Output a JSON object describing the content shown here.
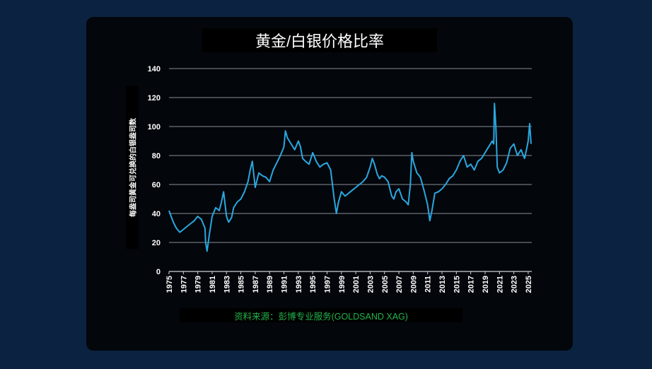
{
  "chart_data": {
    "type": "line",
    "title": "黄金/白银价格比率",
    "ylabel": "每盎司黄金可兑换的白银盎司数",
    "source": "资料来源：彭博专业服务(GOLDSAND XAG)",
    "ylim": [
      0,
      140
    ],
    "xlim": [
      1975,
      2025.5
    ],
    "grid": true,
    "line_color": "#29a8e0",
    "y_ticks": [
      0,
      20,
      40,
      60,
      80,
      100,
      120,
      140
    ],
    "x_tick_labels": [
      "1975",
      "1977",
      "1979",
      "1981",
      "1983",
      "1985",
      "1987",
      "1989",
      "1991",
      "1993",
      "1995",
      "1997",
      "1999",
      "2001",
      "2003",
      "2005",
      "2007",
      "2009",
      "2011",
      "2013",
      "2015",
      "2017",
      "2019",
      "2021",
      "2023",
      "2025"
    ],
    "series": [
      {
        "x": [
          1975.0,
          1975.3,
          1975.6,
          1976.0,
          1976.5,
          1977.0,
          1977.5,
          1978.0,
          1978.5,
          1979.0,
          1979.5,
          1980.0,
          1980.1,
          1980.3,
          1980.6,
          1981.0,
          1981.5,
          1982.0,
          1982.3,
          1982.6,
          1983.0,
          1983.3,
          1983.7,
          1984.0,
          1984.5,
          1985.0,
          1985.5,
          1986.0,
          1986.3,
          1986.6,
          1987.0,
          1987.5,
          1988.0,
          1988.5,
          1989.0,
          1989.5,
          1990.0,
          1990.5,
          1991.0,
          1991.2,
          1991.5,
          1992.0,
          1992.5,
          1993.0,
          1993.3,
          1993.6,
          1994.0,
          1994.5,
          1995.0,
          1995.5,
          1996.0,
          1996.5,
          1997.0,
          1997.5,
          1998.0,
          1998.3,
          1998.6,
          1999.0,
          1999.5,
          2000.0,
          2000.5,
          2001.0,
          2001.5,
          2002.0,
          2002.5,
          2003.0,
          2003.3,
          2003.6,
          2004.0,
          2004.3,
          2004.6,
          2005.0,
          2005.5,
          2006.0,
          2006.3,
          2006.6,
          2007.0,
          2007.5,
          2008.0,
          2008.3,
          2008.6,
          2008.8,
          2009.0,
          2009.5,
          2010.0,
          2010.5,
          2011.0,
          2011.3,
          2011.6,
          2012.0,
          2012.5,
          2013.0,
          2013.5,
          2014.0,
          2014.5,
          2015.0,
          2015.5,
          2016.0,
          2016.5,
          2017.0,
          2017.5,
          2018.0,
          2018.5,
          2019.0,
          2019.5,
          2020.0,
          2020.2,
          2020.3,
          2020.5,
          2020.7,
          2021.0,
          2021.5,
          2022.0,
          2022.5,
          2023.0,
          2023.5,
          2024.0,
          2024.5,
          2024.8,
          2025.0,
          2025.2,
          2025.4
        ],
        "y": [
          42,
          38,
          34,
          30,
          27,
          29,
          31,
          33,
          35,
          38,
          36,
          30,
          20,
          14,
          25,
          38,
          44,
          42,
          48,
          55,
          38,
          34,
          37,
          44,
          48,
          50,
          55,
          62,
          70,
          76,
          58,
          68,
          66,
          65,
          62,
          70,
          75,
          80,
          86,
          97,
          92,
          88,
          84,
          90,
          86,
          78,
          76,
          74,
          82,
          76,
          72,
          74,
          75,
          70,
          50,
          40,
          48,
          55,
          52,
          54,
          56,
          58,
          60,
          62,
          65,
          72,
          78,
          74,
          67,
          64,
          66,
          65,
          62,
          52,
          50,
          55,
          57,
          50,
          48,
          46,
          60,
          82,
          76,
          68,
          65,
          56,
          46,
          35,
          42,
          54,
          55,
          57,
          60,
          64,
          66,
          70,
          76,
          80,
          72,
          74,
          70,
          76,
          78,
          82,
          86,
          90,
          88,
          116,
          100,
          72,
          68,
          70,
          75,
          85,
          88,
          80,
          84,
          78,
          85,
          90,
          102,
          88
        ]
      }
    ]
  }
}
